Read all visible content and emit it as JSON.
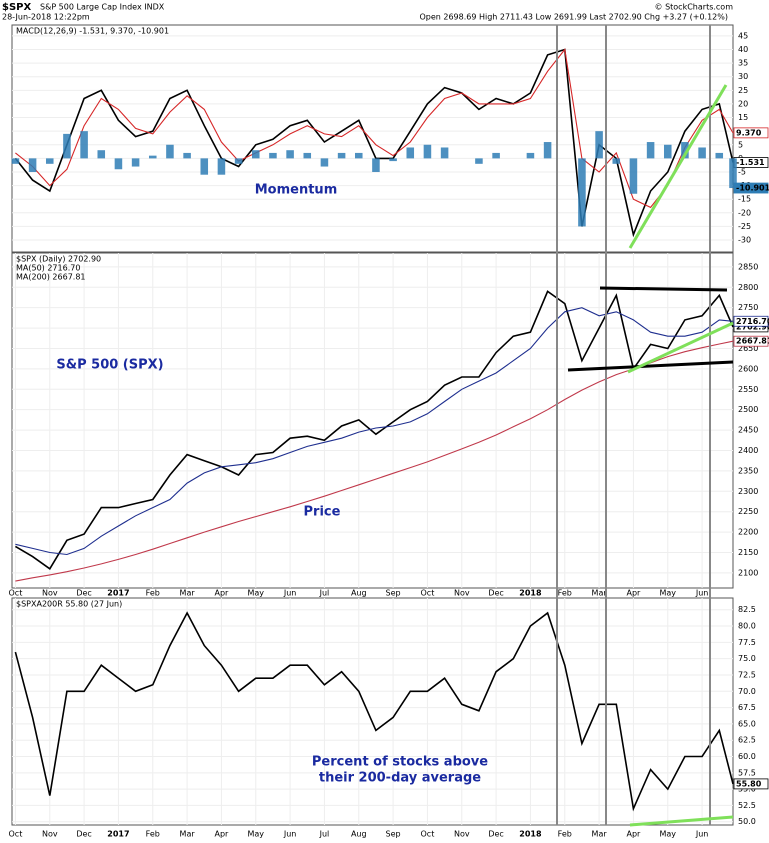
{
  "header": {
    "symbol": "$SPX",
    "name": "S&P 500 Large Cap Index INDX",
    "timestamp": "28-Jun-2018 12:22pm",
    "quote": "Open 2698.69  High 2711.43  Low 2691.99  Last 2702.90  Chg +3.27 (+0.12%)",
    "credit": "© StockCharts.com"
  },
  "chart_data": [
    {
      "type": "line",
      "legend": "MACD(12,26,9) -1.531, 9.370, -10.901",
      "annotation": "Momentum",
      "x": [
        0,
        0.5,
        1,
        1.5,
        2,
        2.5,
        3,
        3.5,
        4,
        4.5,
        5,
        5.5,
        6,
        6.5,
        7,
        7.5,
        8,
        8.5,
        9,
        9.5,
        10,
        10.5,
        11,
        11.5,
        12,
        12.5,
        13,
        13.5,
        14,
        14.5,
        15,
        15.5,
        16,
        16.5,
        17,
        17.5,
        18,
        18.5,
        19,
        19.5,
        20,
        20.5,
        20.9
      ],
      "xlim": [
        -0.1,
        20.9
      ],
      "ylim": [
        -34.4,
        49
      ],
      "yticks": [
        45,
        40,
        35,
        30,
        25,
        20,
        15,
        10,
        5,
        0,
        -5,
        -10,
        -15,
        -20,
        -25,
        -30
      ],
      "grid": true,
      "series": [
        {
          "name": "MACD",
          "color": "#000000",
          "last_label": "-1.531",
          "values": [
            0,
            -8,
            -12,
            5,
            22,
            25,
            14,
            8,
            10,
            22,
            25,
            12,
            0,
            -3,
            5,
            7,
            12,
            14,
            6,
            10,
            14,
            0,
            0,
            10,
            20,
            26,
            24,
            18,
            22,
            20,
            24,
            38,
            40,
            -25,
            5,
            0,
            -28,
            -12,
            -5,
            10,
            18,
            20,
            -1.531
          ]
        },
        {
          "name": "Signal",
          "color": "#d62728",
          "last_label": "9.370",
          "values": [
            2,
            -3,
            -10,
            -4,
            12,
            22,
            18,
            11,
            9,
            17,
            23,
            18,
            6,
            -1,
            2,
            5,
            9,
            12,
            9,
            8,
            12,
            5,
            1,
            6,
            15,
            22,
            24,
            20,
            20,
            20,
            22,
            32,
            40,
            0,
            -5,
            2,
            -15,
            -18,
            -10,
            4,
            14,
            18,
            9.37
          ]
        },
        {
          "name": "Histogram",
          "color": "#2e7db5",
          "style": "histogram",
          "last_label": "-10.901",
          "values": [
            -2,
            -5,
            -2,
            9,
            10,
            3,
            -4,
            -3,
            1,
            5,
            2,
            -6,
            -6,
            -2,
            3,
            2,
            3,
            2,
            -3,
            2,
            2,
            -5,
            -1,
            4,
            5,
            4,
            0,
            -2,
            2,
            0,
            2,
            6,
            0,
            -25,
            10,
            -2,
            -13,
            6,
            5,
            6,
            4,
            2,
            -10.901
          ]
        }
      ]
    },
    {
      "type": "line",
      "legend": [
        "$SPX (Daily) 2702.90",
        "MA(50) 2716.70",
        "MA(200) 2667.81"
      ],
      "annotation": [
        "S&P 500 (SPX)",
        "Price"
      ],
      "x": [
        0,
        0.5,
        1,
        1.5,
        2,
        2.5,
        3,
        3.5,
        4,
        4.5,
        5,
        5.5,
        6,
        6.5,
        7,
        7.5,
        8,
        8.5,
        9,
        9.5,
        10,
        10.5,
        11,
        11.5,
        12,
        12.5,
        13,
        13.5,
        14,
        14.5,
        15,
        15.5,
        16,
        16.5,
        17,
        17.5,
        18,
        18.5,
        19,
        19.5,
        20,
        20.5,
        20.9
      ],
      "xlim": [
        -0.1,
        20.9
      ],
      "ylim": [
        2063,
        2884
      ],
      "yticks": [
        2850,
        2800,
        2750,
        2700,
        2650,
        2600,
        2550,
        2500,
        2450,
        2400,
        2350,
        2300,
        2250,
        2200,
        2150,
        2100
      ],
      "grid": true,
      "xticks": [
        {
          "value": 0,
          "label": "Oct"
        },
        {
          "value": 1,
          "label": "Nov"
        },
        {
          "value": 2,
          "label": "Dec"
        },
        {
          "value": 3,
          "label": "2017"
        },
        {
          "value": 4,
          "label": "Feb"
        },
        {
          "value": 5,
          "label": "Mar"
        },
        {
          "value": 6,
          "label": "Apr"
        },
        {
          "value": 7,
          "label": "May"
        },
        {
          "value": 8,
          "label": "Jun"
        },
        {
          "value": 9,
          "label": "Jul"
        },
        {
          "value": 10,
          "label": "Aug"
        },
        {
          "value": 11,
          "label": "Sep"
        },
        {
          "value": 12,
          "label": "Oct"
        },
        {
          "value": 13,
          "label": "Nov"
        },
        {
          "value": 14,
          "label": "Dec"
        },
        {
          "value": 15,
          "label": "2018"
        },
        {
          "value": 16,
          "label": "Feb"
        },
        {
          "value": 17,
          "label": "Mar"
        },
        {
          "value": 18,
          "label": "Apr"
        },
        {
          "value": 19,
          "label": "May"
        },
        {
          "value": 20,
          "label": "Jun"
        }
      ],
      "series": [
        {
          "name": "$SPX",
          "color": "#000000",
          "last_label": "2702.90",
          "values": [
            2165,
            2140,
            2110,
            2180,
            2195,
            2260,
            2260,
            2270,
            2280,
            2340,
            2390,
            2375,
            2360,
            2340,
            2390,
            2395,
            2430,
            2435,
            2425,
            2460,
            2475,
            2440,
            2470,
            2500,
            2520,
            2560,
            2580,
            2580,
            2640,
            2680,
            2690,
            2790,
            2760,
            2620,
            2700,
            2780,
            2600,
            2660,
            2650,
            2720,
            2730,
            2780,
            2702.9
          ]
        },
        {
          "name": "MA(50)",
          "color": "#1f2f8f",
          "last_label": "2716.70",
          "values": [
            2170,
            2160,
            2150,
            2145,
            2160,
            2190,
            2215,
            2240,
            2260,
            2280,
            2320,
            2345,
            2360,
            2365,
            2370,
            2380,
            2395,
            2410,
            2420,
            2430,
            2445,
            2455,
            2460,
            2470,
            2490,
            2520,
            2550,
            2570,
            2590,
            2620,
            2650,
            2700,
            2740,
            2750,
            2730,
            2740,
            2720,
            2690,
            2680,
            2680,
            2690,
            2720,
            2716.7
          ]
        },
        {
          "name": "MA(200)",
          "color": "#c0394b",
          "last_label": "2667.81",
          "values": [
            2080,
            2088,
            2095,
            2103,
            2112,
            2122,
            2133,
            2145,
            2158,
            2172,
            2186,
            2200,
            2213,
            2226,
            2238,
            2250,
            2262,
            2275,
            2288,
            2302,
            2316,
            2330,
            2344,
            2358,
            2372,
            2388,
            2404,
            2420,
            2438,
            2458,
            2478,
            2500,
            2525,
            2548,
            2568,
            2586,
            2600,
            2615,
            2630,
            2642,
            2652,
            2661,
            2667.81
          ]
        }
      ]
    },
    {
      "type": "line",
      "legend": "$SPXA200R 55.80 (27 Jun)",
      "annotation": [
        "Percent of stocks above",
        "their 200-day average"
      ],
      "x": [
        0,
        0.5,
        1,
        1.5,
        2,
        2.5,
        3,
        3.5,
        4,
        4.5,
        5,
        5.5,
        6,
        6.5,
        7,
        7.5,
        8,
        8.5,
        9,
        9.5,
        10,
        10.5,
        11,
        11.5,
        12,
        12.5,
        13,
        13.5,
        14,
        14.5,
        15,
        15.5,
        16,
        16.5,
        17,
        17.5,
        18,
        18.5,
        19,
        19.5,
        20,
        20.5,
        20.9
      ],
      "xlim": [
        -0.1,
        20.9
      ],
      "ylim": [
        49.5,
        84.3
      ],
      "yticks": [
        82.5,
        {
          "value": 80,
          "label": "80.0"
        },
        77.5,
        {
          "value": 75,
          "label": "75.0"
        },
        72.5,
        {
          "value": 70,
          "label": "70.0"
        },
        67.5,
        {
          "value": 65,
          "label": "65.0"
        },
        62.5,
        {
          "value": 60,
          "label": "60.0"
        },
        57.5,
        {
          "value": 55,
          "label": "55.0"
        },
        52.5,
        {
          "value": 50,
          "label": "50.0"
        }
      ],
      "grid": true,
      "xticks": [
        {
          "value": 0,
          "label": "Oct"
        },
        {
          "value": 1,
          "label": "Nov"
        },
        {
          "value": 2,
          "label": "Dec"
        },
        {
          "value": 3,
          "label": "2017"
        },
        {
          "value": 4,
          "label": "Feb"
        },
        {
          "value": 5,
          "label": "Mar"
        },
        {
          "value": 6,
          "label": "Apr"
        },
        {
          "value": 7,
          "label": "May"
        },
        {
          "value": 8,
          "label": "Jun"
        },
        {
          "value": 9,
          "label": "Jul"
        },
        {
          "value": 10,
          "label": "Aug"
        },
        {
          "value": 11,
          "label": "Sep"
        },
        {
          "value": 12,
          "label": "Oct"
        },
        {
          "value": 13,
          "label": "Nov"
        },
        {
          "value": 14,
          "label": "Dec"
        },
        {
          "value": 15,
          "label": "2018"
        },
        {
          "value": 16,
          "label": "Feb"
        },
        {
          "value": 17,
          "label": "Mar"
        },
        {
          "value": 18,
          "label": "Apr"
        },
        {
          "value": 19,
          "label": "May"
        },
        {
          "value": 20,
          "label": "Jun"
        }
      ],
      "series": [
        {
          "name": "$SPXA200R",
          "color": "#000000",
          "last_label": "55.80",
          "values": [
            76,
            66,
            54,
            70,
            70,
            74,
            72,
            70,
            71,
            77,
            82,
            77,
            74,
            70,
            72,
            72,
            74,
            74,
            71,
            73,
            70,
            64,
            66,
            70,
            70,
            72,
            68,
            67,
            73,
            75,
            80,
            82,
            74,
            62,
            68,
            68,
            52,
            58,
            55,
            60,
            60,
            64,
            55.8
          ]
        }
      ]
    }
  ]
}
